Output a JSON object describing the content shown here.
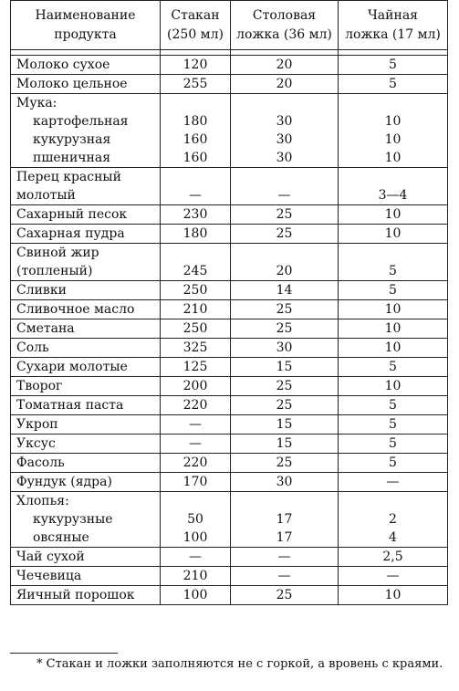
{
  "headers": [
    "Наименование продукта",
    "Стакан (250 мл)",
    "Столовая ложка (36 мл)",
    "Чайная ложка (17 мл)"
  ],
  "header_lines": [
    [
      "Наименование",
      "продукта"
    ],
    [
      "Стакан",
      "(250 мл)"
    ],
    [
      "Столовая",
      "ложка (36 мл)"
    ],
    [
      "Чайная",
      "ложка (17 мл)"
    ]
  ],
  "rows": [
    {
      "name": [
        "Молоко сухое"
      ],
      "glass": "120",
      "tbsp": "20",
      "tsp": "5"
    },
    {
      "name": [
        "Молоко цельное"
      ],
      "glass": "255",
      "tbsp": "20",
      "tsp": "5"
    },
    {
      "group": "Мука:",
      "subs": [
        {
          "name": "картофельная",
          "glass": "180",
          "tbsp": "30",
          "tsp": "10"
        },
        {
          "name": "кукурузная",
          "glass": "160",
          "tbsp": "30",
          "tsp": "10"
        },
        {
          "name": "пшеничная",
          "glass": "160",
          "tbsp": "30",
          "tsp": "10"
        }
      ]
    },
    {
      "name": [
        "Перец красный",
        "молотый"
      ],
      "glass": "—",
      "tbsp": "—",
      "tsp": "3—4"
    },
    {
      "name": [
        "Сахарный песок"
      ],
      "glass": "230",
      "tbsp": "25",
      "tsp": "10"
    },
    {
      "name": [
        "Сахарная пудра"
      ],
      "glass": "180",
      "tbsp": "25",
      "tsp": "10"
    },
    {
      "name": [
        "Свиной жир",
        "(топленый)"
      ],
      "glass": "245",
      "tbsp": "20",
      "tsp": "5"
    },
    {
      "name": [
        "Сливки"
      ],
      "glass": "250",
      "tbsp": "14",
      "tsp": "5"
    },
    {
      "name": [
        "Сливочное масло"
      ],
      "glass": "210",
      "tbsp": "25",
      "tsp": "10"
    },
    {
      "name": [
        "Сметана"
      ],
      "glass": "250",
      "tbsp": "25",
      "tsp": "10"
    },
    {
      "name": [
        "Соль"
      ],
      "glass": "325",
      "tbsp": "30",
      "tsp": "10"
    },
    {
      "name": [
        "Сухари молотые"
      ],
      "glass": "125",
      "tbsp": "15",
      "tsp": "5"
    },
    {
      "name": [
        "Творог"
      ],
      "glass": "200",
      "tbsp": "25",
      "tsp": "10"
    },
    {
      "name": [
        "Томатная паста"
      ],
      "glass": "220",
      "tbsp": "25",
      "tsp": "5"
    },
    {
      "name": [
        "Укроп"
      ],
      "glass": "—",
      "tbsp": "15",
      "tsp": "5"
    },
    {
      "name": [
        "Уксус"
      ],
      "glass": "—",
      "tbsp": "15",
      "tsp": "5"
    },
    {
      "name": [
        "Фасоль"
      ],
      "glass": "220",
      "tbsp": "25",
      "tsp": "5"
    },
    {
      "name": [
        "Фундук (ядра)"
      ],
      "glass": "170",
      "tbsp": "30",
      "tsp": "—"
    },
    {
      "group": "Хлопья:",
      "subs": [
        {
          "name": "кукурузные",
          "glass": "50",
          "tbsp": "17",
          "tsp": "2"
        },
        {
          "name": "овсяные",
          "glass": "100",
          "tbsp": "17",
          "tsp": "4"
        }
      ]
    },
    {
      "name": [
        "Чай сухой"
      ],
      "glass": "—",
      "tbsp": "—",
      "tsp": "2,5"
    },
    {
      "name": [
        "Чечевица"
      ],
      "glass": "210",
      "tbsp": "—",
      "tsp": "—"
    },
    {
      "name": [
        "Яичный порошок"
      ],
      "glass": "100",
      "tbsp": "25",
      "tsp": "10"
    }
  ],
  "footnote": "* Стакан и ложки заполняются не с горкой, а вровень с краями."
}
